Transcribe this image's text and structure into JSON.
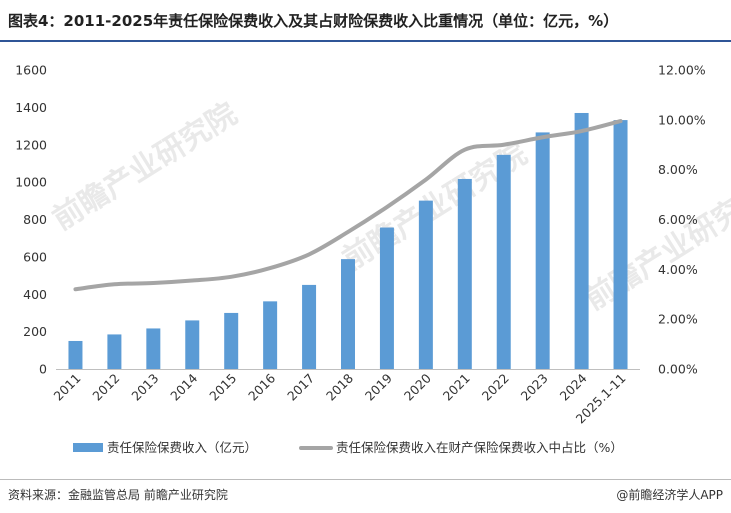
{
  "header": {
    "title": "图表4：2011-2025年责任保险保费收入及其占财险保费收入比重情况（单位：亿元，%）"
  },
  "footer": {
    "source": "资料来源：金融监管总局 前瞻产业研究院",
    "brand": "@前瞻经济学人APP"
  },
  "watermark": "前瞻产业研究院",
  "chart_data": {
    "type": "bar",
    "categories": [
      "2011",
      "2012",
      "2013",
      "2014",
      "2015",
      "2016",
      "2017",
      "2018",
      "2019",
      "2020",
      "2021",
      "2022",
      "2023",
      "2024",
      "2025.1-11"
    ],
    "series": [
      {
        "name": "责任保险保费收入（亿元）",
        "type": "bar",
        "axis": "left",
        "values": [
          150,
          185,
          217,
          260,
          300,
          362,
          450,
          588,
          757,
          901,
          1017,
          1146,
          1266,
          1370,
          1332
        ]
      },
      {
        "name": "责任保险保费收入在财产保险保费收入中占比（%）",
        "type": "line",
        "axis": "right",
        "values": [
          3.2,
          3.4,
          3.45,
          3.55,
          3.7,
          4.05,
          4.6,
          5.5,
          6.5,
          7.6,
          8.8,
          9.0,
          9.3,
          9.55,
          9.95
        ]
      }
    ],
    "y_left": {
      "lim": [
        0,
        1600
      ],
      "ticks": [
        "0",
        "200",
        "400",
        "600",
        "800",
        "1000",
        "1200",
        "1400",
        "1600"
      ]
    },
    "y_right": {
      "lim": [
        0,
        12
      ],
      "ticks": [
        "0.00%",
        "2.00%",
        "4.00%",
        "6.00%",
        "8.00%",
        "10.00%",
        "12.00%"
      ]
    },
    "grid": false,
    "legend": "bottom",
    "colors": {
      "bar": "#5b9bd5",
      "line": "#a5a5a5",
      "title_rule": "#2f5597"
    }
  }
}
